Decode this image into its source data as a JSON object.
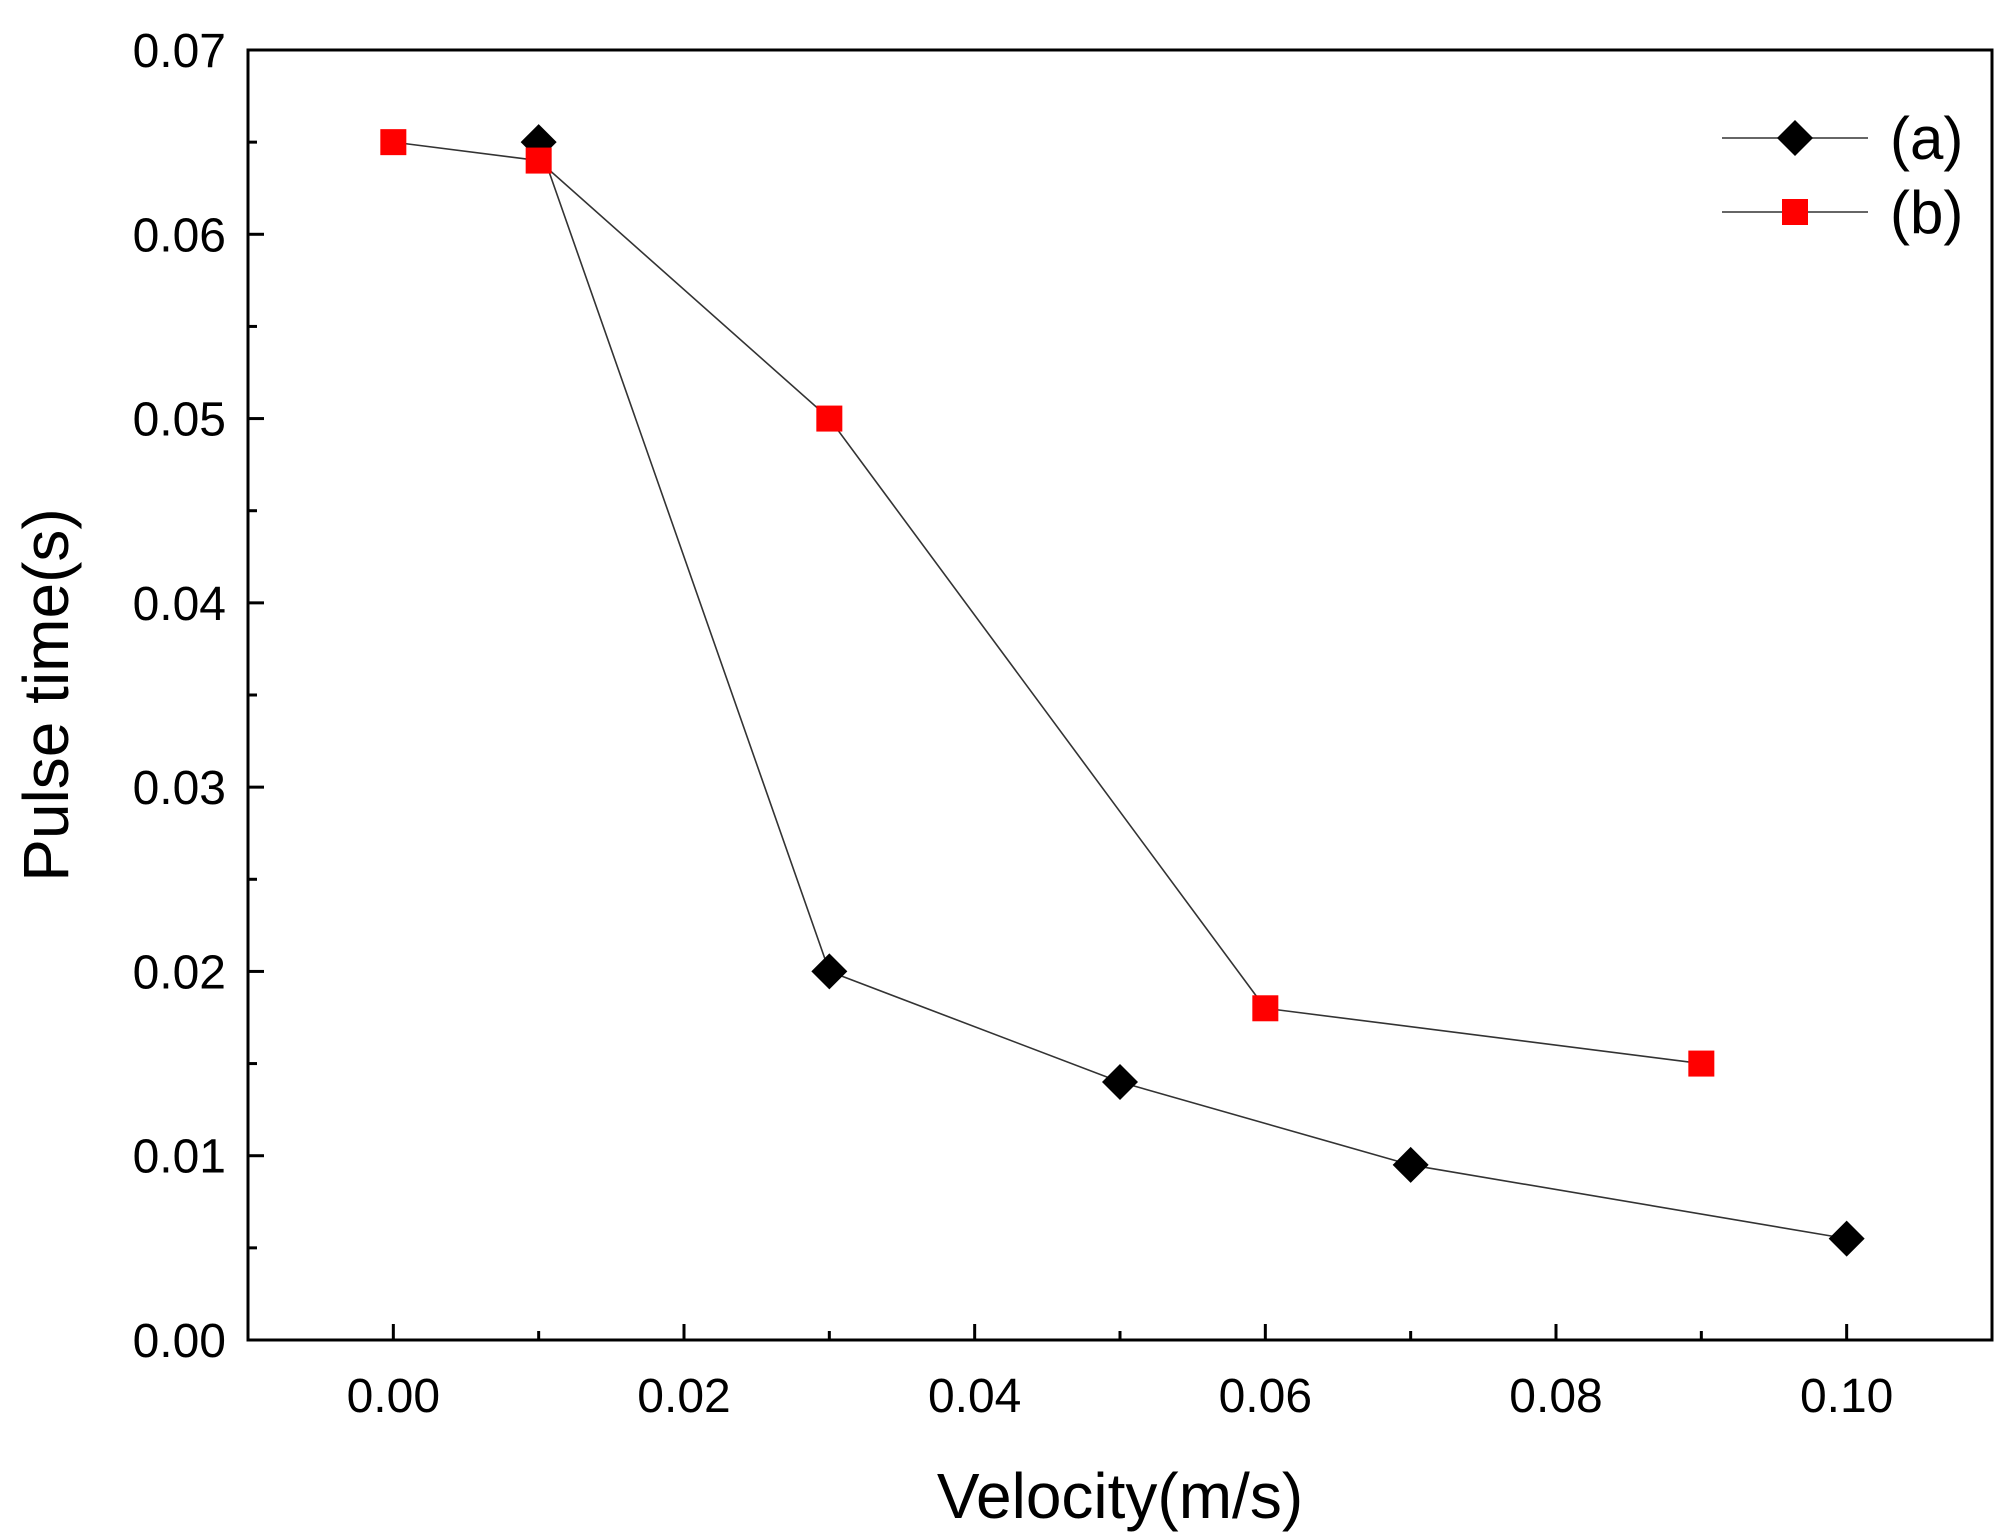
{
  "chart_data": {
    "type": "line",
    "title": "",
    "xlabel": "Velocity(m/s)",
    "ylabel": "Pulse time(s)",
    "xlim": [
      -0.01,
      0.11
    ],
    "ylim": [
      0.0,
      0.07
    ],
    "x_ticks": [
      "0.00",
      "0.02",
      "0.04",
      "0.06",
      "0.08",
      "0.10"
    ],
    "x_tick_values": [
      0.0,
      0.02,
      0.04,
      0.06,
      0.08,
      0.1
    ],
    "y_ticks": [
      "0.00",
      "0.01",
      "0.02",
      "0.03",
      "0.04",
      "0.05",
      "0.06",
      "0.07"
    ],
    "y_tick_values": [
      0.0,
      0.01,
      0.02,
      0.03,
      0.04,
      0.05,
      0.06,
      0.07
    ],
    "grid": false,
    "legend_position": "top-right",
    "series": [
      {
        "name": "(a)",
        "marker": "diamond",
        "color": "#000000",
        "x": [
          0.01,
          0.03,
          0.05,
          0.07,
          0.1
        ],
        "y": [
          0.065,
          0.02,
          0.014,
          0.0095,
          0.0055
        ]
      },
      {
        "name": "(b)",
        "marker": "square",
        "color": "#ff0000",
        "x": [
          0.0,
          0.01,
          0.03,
          0.06,
          0.09
        ],
        "y": [
          0.065,
          0.064,
          0.05,
          0.018,
          0.015
        ]
      }
    ]
  }
}
